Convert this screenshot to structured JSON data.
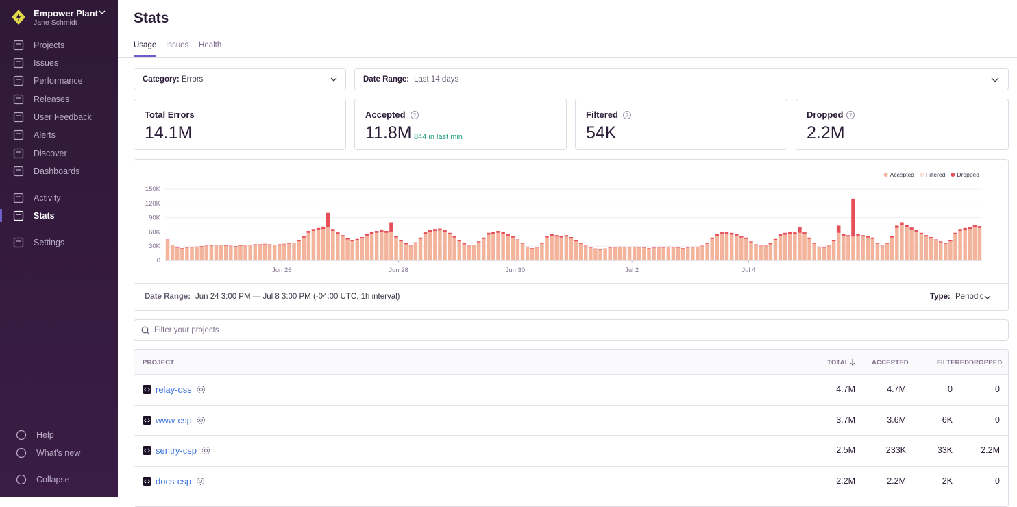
{
  "sidebar": {
    "org": "Empower Plant",
    "user": "Jane Schmidt",
    "nav": [
      "Projects",
      "Issues",
      "Performance",
      "Releases",
      "User Feedback",
      "Alerts",
      "Discover",
      "Dashboards",
      "Activity",
      "Stats",
      "Settings"
    ],
    "footer": [
      "Help",
      "What's new",
      "Collapse"
    ]
  },
  "header": {
    "title": "Stats",
    "tabs": [
      "Usage",
      "Issues",
      "Health"
    ]
  },
  "filters": [
    {
      "label": "Category:",
      "value": "Errors"
    },
    {
      "label": "Date Range:",
      "value": "Last 14 days"
    }
  ],
  "cards": [
    {
      "title": "Total Errors",
      "value": "14.1M"
    },
    {
      "title": "Accepted",
      "value": "11.8M",
      "note": "844 in last min"
    },
    {
      "title": "Filtered",
      "value": "54K"
    },
    {
      "title": "Dropped",
      "value": "2.2M"
    }
  ],
  "chart_data": {
    "type": "bar",
    "stacked": true,
    "legend": "top-right",
    "grid": true,
    "ylim": [
      0,
      150
    ],
    "yticks": [
      0,
      {
        "value": 30,
        "label": "30K"
      },
      {
        "value": 60,
        "label": "60K"
      },
      {
        "value": 90,
        "label": "90K"
      },
      {
        "value": 120,
        "label": "120K"
      },
      {
        "value": 150,
        "label": "150K"
      }
    ],
    "xlim": [
      0,
      168
    ],
    "xticks": [
      {
        "value": 24,
        "label": "Jun 26"
      },
      {
        "value": 48,
        "label": "Jun 28"
      },
      {
        "value": 72,
        "label": "Jun 30"
      },
      {
        "value": 96,
        "label": "Jul 2"
      },
      {
        "value": 120,
        "label": "Jul 4"
      }
    ],
    "series": [
      {
        "name": "Accepted",
        "color": "#f4b49c",
        "values": [
          42,
          32,
          26,
          25,
          26,
          27,
          28,
          29,
          30,
          31,
          32,
          32,
          31,
          30,
          29,
          31,
          30,
          32,
          33,
          33,
          34,
          33,
          32,
          33,
          34,
          35,
          36,
          40,
          48,
          58,
          62,
          64,
          66,
          70,
          62,
          55,
          50,
          44,
          40,
          42,
          46,
          52,
          56,
          58,
          60,
          58,
          60,
          48,
          40,
          34,
          30,
          36,
          45,
          55,
          60,
          62,
          63,
          60,
          55,
          48,
          40,
          34,
          30,
          32,
          38,
          45,
          54,
          56,
          58,
          56,
          52,
          48,
          42,
          35,
          28,
          25,
          27,
          35,
          48,
          52,
          50,
          48,
          50,
          46,
          40,
          35,
          30,
          26,
          24,
          22,
          24,
          26,
          27,
          28,
          28,
          27,
          28,
          27,
          26,
          25,
          26,
          27,
          26,
          28,
          27,
          26,
          25,
          26,
          27,
          28,
          30,
          35,
          45,
          52,
          55,
          56,
          54,
          52,
          48,
          45,
          38,
          33,
          30,
          30,
          34,
          42,
          52,
          54,
          56,
          55,
          58,
          55,
          45,
          35,
          28,
          26,
          30,
          40,
          58,
          52,
          50,
          50,
          52,
          50,
          48,
          45,
          35,
          30,
          35,
          48,
          68,
          75,
          70,
          65,
          60,
          55,
          50,
          46,
          42,
          38,
          35,
          40,
          55,
          62,
          64,
          66,
          70,
          68
        ]
      },
      {
        "name": "Filtered",
        "color": "#f7ddd6",
        "values": [
          0,
          0,
          0,
          0,
          0,
          0,
          0,
          0,
          0,
          0,
          0,
          0,
          0,
          0,
          0,
          0,
          0,
          0,
          0,
          0,
          0,
          0,
          0,
          0,
          0,
          0,
          0,
          0,
          0,
          0,
          0,
          0,
          0,
          0,
          0,
          0,
          0,
          0,
          0,
          0,
          0,
          0,
          0,
          0,
          0,
          0,
          0,
          0,
          0,
          0,
          0,
          0,
          0,
          0,
          0,
          0,
          0,
          0,
          0,
          0,
          0,
          0,
          0,
          0,
          0,
          0,
          0,
          0,
          0,
          0,
          0,
          0,
          0,
          0,
          0,
          0,
          0,
          0,
          0,
          0,
          0,
          0,
          0,
          0,
          0,
          0,
          0,
          0,
          0,
          0,
          0,
          0,
          0,
          0,
          0,
          0,
          0,
          0,
          0,
          0,
          0,
          0,
          0,
          0,
          0,
          0,
          0,
          0,
          0,
          0,
          0,
          0,
          0,
          0,
          0,
          0,
          0,
          0,
          0,
          0,
          0,
          0,
          0,
          0,
          0,
          0,
          0,
          0,
          0,
          0,
          0,
          0,
          0,
          0,
          0,
          0,
          0,
          0,
          0,
          0,
          0,
          0,
          0,
          0,
          0,
          0,
          0,
          0,
          0,
          0,
          0,
          0,
          0,
          0,
          0,
          0,
          0,
          0,
          0,
          0,
          0,
          0,
          0,
          0,
          0,
          0,
          0,
          0
        ]
      },
      {
        "name": "Dropped",
        "color": "#e5505a",
        "values": [
          2,
          1,
          1,
          1,
          1,
          1,
          1,
          1,
          1,
          1,
          1,
          1,
          1,
          1,
          1,
          1,
          1,
          1,
          1,
          1,
          1,
          1,
          1,
          1,
          1,
          1,
          1,
          2,
          3,
          4,
          4,
          4,
          5,
          30,
          4,
          4,
          3,
          3,
          2,
          3,
          3,
          4,
          4,
          4,
          5,
          4,
          20,
          3,
          2,
          2,
          1,
          2,
          3,
          4,
          4,
          4,
          4,
          4,
          3,
          3,
          2,
          2,
          1,
          1,
          2,
          3,
          4,
          4,
          4,
          4,
          3,
          3,
          2,
          2,
          1,
          1,
          1,
          2,
          3,
          3,
          3,
          3,
          3,
          3,
          2,
          2,
          1,
          1,
          1,
          1,
          1,
          1,
          1,
          1,
          1,
          1,
          1,
          1,
          1,
          1,
          1,
          1,
          1,
          1,
          1,
          1,
          1,
          1,
          1,
          1,
          1,
          2,
          3,
          3,
          4,
          4,
          4,
          3,
          3,
          3,
          2,
          1,
          1,
          1,
          2,
          3,
          3,
          4,
          4,
          4,
          12,
          4,
          3,
          2,
          1,
          1,
          1,
          2,
          15,
          3,
          3,
          80,
          3,
          3,
          3,
          3,
          2,
          1,
          2,
          3,
          5,
          5,
          5,
          4,
          4,
          3,
          3,
          3,
          2,
          2,
          2,
          2,
          3,
          4,
          4,
          4,
          5,
          4
        ]
      }
    ]
  },
  "chart_footer": {
    "date_label": "Date Range:",
    "date_value": "Jun 24 3:00 PM — Jul 8 3:00 PM (-04:00 UTC, 1h interval)",
    "type_label": "Type:",
    "type_value": "Periodic"
  },
  "search": {
    "placeholder": "Filter your projects"
  },
  "table": {
    "columns": [
      "PROJECT",
      "TOTAL",
      "ACCEPTED",
      "FILTERED",
      "DROPPED"
    ],
    "rows": [
      [
        "relay-oss",
        "4.7M",
        "4.7M",
        "0",
        "0"
      ],
      [
        "www-csp",
        "3.7M",
        "3.6M",
        "6K",
        "0"
      ],
      [
        "sentry-csp",
        "2.5M",
        "233K",
        "33K",
        "2.2M"
      ],
      [
        "docs-csp",
        "2.2M",
        "2.2M",
        "2K",
        "0"
      ]
    ]
  }
}
